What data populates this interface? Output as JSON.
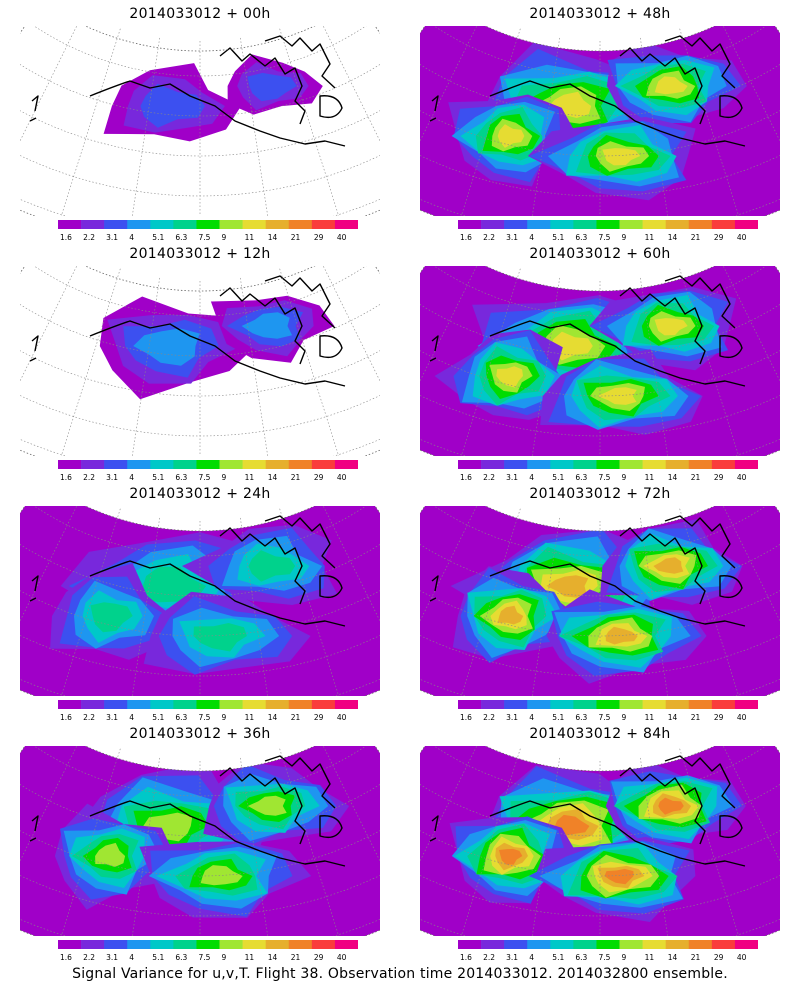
{
  "caption": "Signal Variance for u,v,T. Flight 38. Observation time 2014033012. 2014032800 ensemble.",
  "colorbar": {
    "labels": [
      "1.6",
      "2.2",
      "3.1",
      "4",
      "5.1",
      "6.3",
      "7.5",
      "9",
      "11",
      "14",
      "21",
      "29",
      "40"
    ],
    "colors": [
      "#a000c8",
      "#7828dc",
      "#3c50f0",
      "#1e96f0",
      "#00c8c8",
      "#00d28c",
      "#00dc00",
      "#a0e632",
      "#e6dc32",
      "#e6af2d",
      "#f08228",
      "#fa3c3c",
      "#f00082"
    ]
  },
  "panels": [
    {
      "title": "2014033012 + 00h",
      "level": 0.08
    },
    {
      "title": "2014033012 + 48h",
      "level": 0.62
    },
    {
      "title": "2014033012 + 12h",
      "level": 0.22
    },
    {
      "title": "2014033012 + 60h",
      "level": 0.72
    },
    {
      "title": "2014033012 + 24h",
      "level": 0.38
    },
    {
      "title": "2014033012 + 72h",
      "level": 0.8
    },
    {
      "title": "2014033012 + 36h",
      "level": 0.5
    },
    {
      "title": "2014033012 + 84h",
      "level": 0.86
    }
  ]
}
